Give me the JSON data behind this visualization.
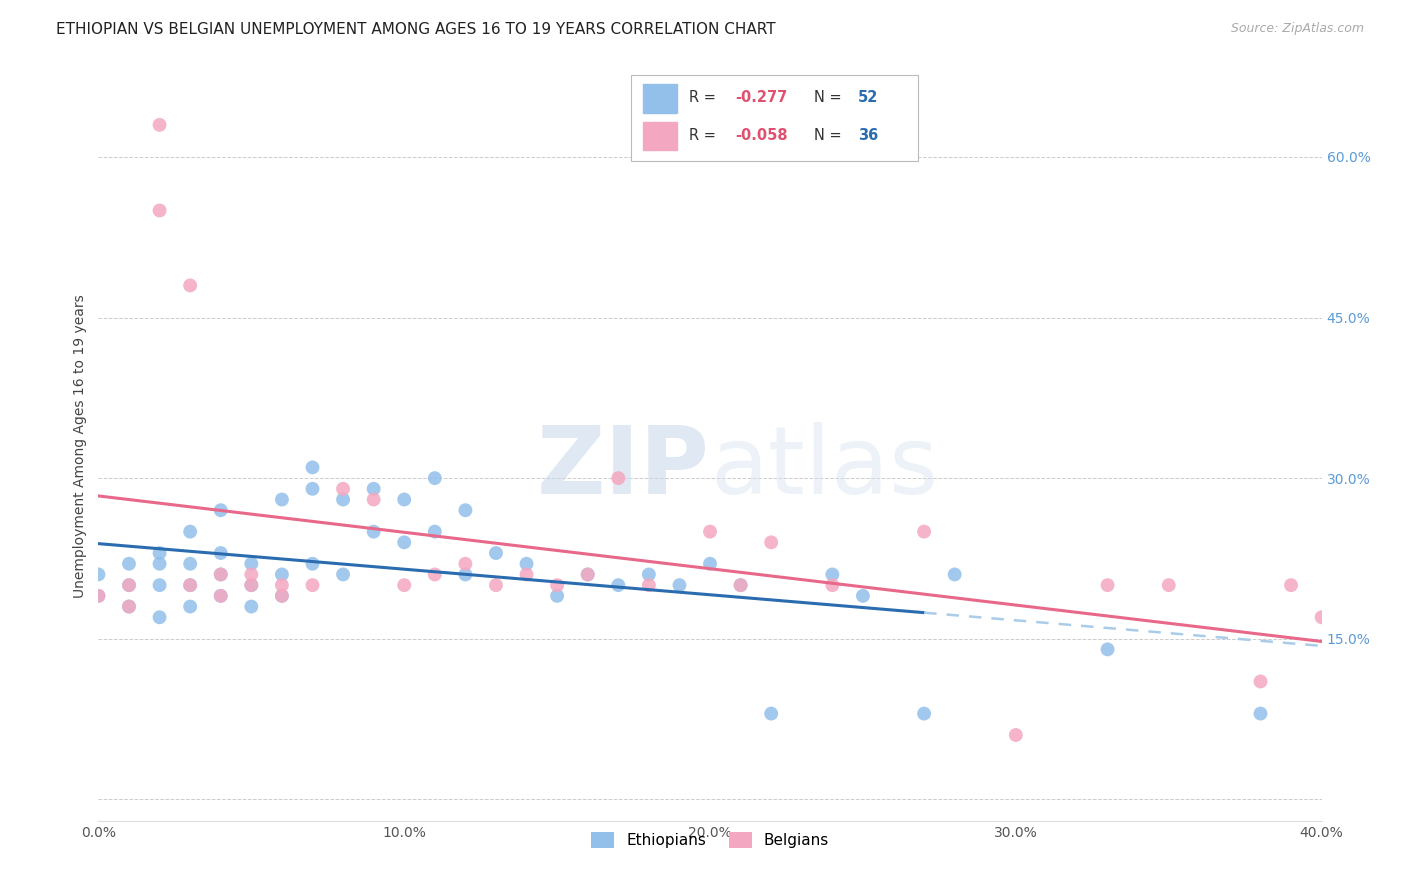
{
  "title": "ETHIOPIAN VS BELGIAN UNEMPLOYMENT AMONG AGES 16 TO 19 YEARS CORRELATION CHART",
  "source": "Source: ZipAtlas.com",
  "ylabel": "Unemployment Among Ages 16 to 19 years",
  "xlabel_ticks": [
    "0.0%",
    "10.0%",
    "20.0%",
    "30.0%",
    "40.0%"
  ],
  "ylabel_ticks_right": [
    "60.0%",
    "45.0%",
    "30.0%",
    "15.0%"
  ],
  "xlim": [
    0.0,
    0.4
  ],
  "ylim": [
    -0.02,
    0.68
  ],
  "ethiopians_x": [
    0.0,
    0.0,
    0.01,
    0.01,
    0.01,
    0.02,
    0.02,
    0.02,
    0.02,
    0.03,
    0.03,
    0.03,
    0.03,
    0.04,
    0.04,
    0.04,
    0.04,
    0.05,
    0.05,
    0.05,
    0.06,
    0.06,
    0.06,
    0.07,
    0.07,
    0.07,
    0.08,
    0.08,
    0.09,
    0.09,
    0.1,
    0.1,
    0.11,
    0.11,
    0.12,
    0.12,
    0.13,
    0.14,
    0.15,
    0.16,
    0.17,
    0.18,
    0.19,
    0.2,
    0.21,
    0.22,
    0.24,
    0.25,
    0.27,
    0.28,
    0.33,
    0.38
  ],
  "ethiopians_y": [
    0.19,
    0.21,
    0.18,
    0.2,
    0.22,
    0.17,
    0.2,
    0.23,
    0.22,
    0.18,
    0.2,
    0.22,
    0.25,
    0.19,
    0.21,
    0.23,
    0.27,
    0.18,
    0.2,
    0.22,
    0.19,
    0.21,
    0.28,
    0.22,
    0.29,
    0.31,
    0.21,
    0.28,
    0.25,
    0.29,
    0.24,
    0.28,
    0.25,
    0.3,
    0.21,
    0.27,
    0.23,
    0.22,
    0.19,
    0.21,
    0.2,
    0.21,
    0.2,
    0.22,
    0.2,
    0.08,
    0.21,
    0.19,
    0.08,
    0.21,
    0.14,
    0.08
  ],
  "belgians_x": [
    0.0,
    0.01,
    0.01,
    0.02,
    0.02,
    0.03,
    0.03,
    0.04,
    0.04,
    0.05,
    0.05,
    0.06,
    0.06,
    0.07,
    0.08,
    0.09,
    0.1,
    0.11,
    0.12,
    0.13,
    0.14,
    0.15,
    0.16,
    0.17,
    0.18,
    0.2,
    0.21,
    0.22,
    0.24,
    0.27,
    0.3,
    0.33,
    0.35,
    0.38,
    0.39,
    0.4
  ],
  "belgians_y": [
    0.19,
    0.2,
    0.18,
    0.63,
    0.55,
    0.48,
    0.2,
    0.21,
    0.19,
    0.2,
    0.21,
    0.2,
    0.19,
    0.2,
    0.29,
    0.28,
    0.2,
    0.21,
    0.22,
    0.2,
    0.21,
    0.2,
    0.21,
    0.3,
    0.2,
    0.25,
    0.2,
    0.24,
    0.2,
    0.25,
    0.06,
    0.2,
    0.2,
    0.11,
    0.2,
    0.17
  ],
  "ethiopian_color": "#92c0ea",
  "belgian_color": "#f4a7c0",
  "trendline_ethiopian_color": "#2b6cb0",
  "trendline_belgian_color": "#e8688a",
  "trendline_ethiopian_dashed_color": "#aacce8",
  "background_color": "#ffffff",
  "grid_color": "#cccccc",
  "legend_label_eth": "Ethiopians",
  "legend_label_bel": "Belgians",
  "R_eth": "-0.277",
  "N_eth": "52",
  "R_bel": "-0.058",
  "N_bel": "36",
  "watermark_zip": "ZIP",
  "watermark_atlas": "atlas",
  "title_fontsize": 11,
  "source_fontsize": 9,
  "ytick_vals": [
    0.6,
    0.45,
    0.3,
    0.15
  ],
  "xtick_vals": [
    0.0,
    0.1,
    0.2,
    0.3,
    0.4
  ]
}
